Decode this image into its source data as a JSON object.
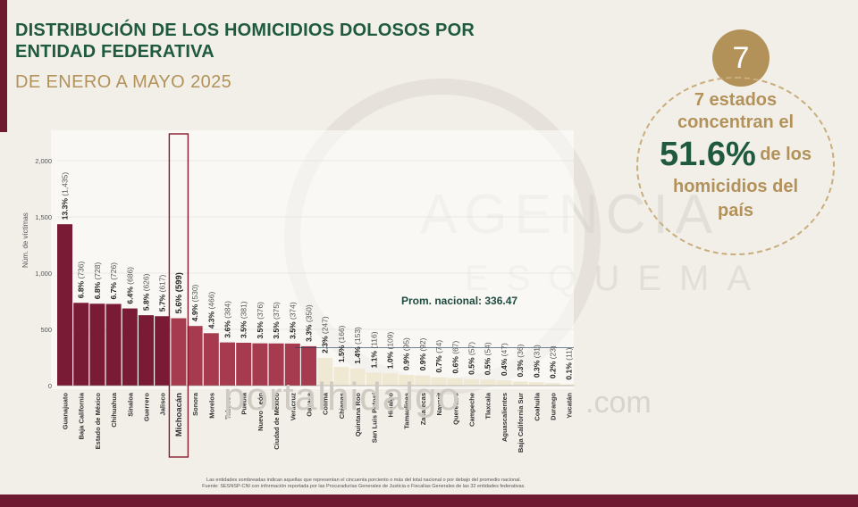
{
  "header": {
    "title": "DISTRIBUCIÓN DE LOS HOMICIDIOS DOLOSOS POR ENTIDAD FEDERATIVA",
    "subtitle": "DE ENERO A MAYO 2025"
  },
  "summary": {
    "badge": "7",
    "line1": "7 estados",
    "line2": "concentran el",
    "percent": "51.6%",
    "line3": "de los",
    "line4": "homicidios del",
    "line5": "país"
  },
  "watermark": {
    "site": "portalhidalgo",
    "domain": ".com"
  },
  "footer": {
    "note1": "Las entidades sombreadas indican aquellas que representan el cincuenta porciento o más del total nacional o por debajo del promedio nacional.",
    "note2": "Fuente: SESNSP-CNI con información reportada por las Procuradurías Generales de Justicia o Fiscalías Generales de las 32 entidades federativas."
  },
  "colors": {
    "bar_dark": "#7a1b35",
    "bar_mid": "#a63a4e",
    "bar_light": "#efe9d4",
    "green": "#1f5a3f",
    "gold": "#b3925a"
  },
  "chart_data": {
    "type": "bar",
    "ylabel": "Núm. de víctimas",
    "ylim": [
      0,
      2000
    ],
    "yticks": [
      "0",
      "500",
      "1,000",
      "1,500",
      "2,000"
    ],
    "average_label": "Prom. nacional: 336.47",
    "average": 336.47,
    "highlighted": "Michoacán",
    "categories": [
      "Guanajuato",
      "Baja California",
      "Estado de México",
      "Chihuahua",
      "Sinaloa",
      "Guerrero",
      "Jalisco",
      "Michoacán",
      "Sonora",
      "Morelos",
      "Tabasco",
      "Puebla",
      "Nuevo León",
      "Ciudad de México",
      "Veracruz",
      "Oaxaca",
      "Colima",
      "Chiapas",
      "Quintana Roo",
      "San Luis Potosí",
      "Hidalgo",
      "Tamaulipas",
      "Zacatecas",
      "Nayarit",
      "Querétaro",
      "Campeche",
      "Tlaxcala",
      "Aguascalientes",
      "Baja California Sur",
      "Coahuila",
      "Durango",
      "Yucatán"
    ],
    "values": [
      1435,
      736,
      728,
      726,
      686,
      626,
      617,
      599,
      530,
      466,
      384,
      381,
      376,
      375,
      374,
      350,
      247,
      166,
      153,
      116,
      109,
      95,
      92,
      74,
      67,
      57,
      54,
      47,
      36,
      31,
      23,
      11
    ],
    "pct": [
      "13.3%",
      "6.8%",
      "6.8%",
      "6.7%",
      "6.4%",
      "5.8%",
      "5.7%",
      "5.6%",
      "4.9%",
      "4.3%",
      "3.6%",
      "3.5%",
      "3.5%",
      "3.5%",
      "3.5%",
      "3.3%",
      "2.3%",
      "1.5%",
      "1.4%",
      "1.1%",
      "1.0%",
      "0.9%",
      "0.9%",
      "0.7%",
      "0.6%",
      "0.5%",
      "0.5%",
      "0.4%",
      "0.3%",
      "0.3%",
      "0.2%",
      "0.1%"
    ],
    "counts": [
      "(1,435)",
      "(736)",
      "(728)",
      "(726)",
      "(686)",
      "(626)",
      "(617)",
      "(599)",
      "(530)",
      "(466)",
      "(384)",
      "(381)",
      "(376)",
      "(375)",
      "(374)",
      "(350)",
      "(247)",
      "(166)",
      "(153)",
      "(116)",
      "(109)",
      "(95)",
      "(92)",
      "(74)",
      "(67)",
      "(57)",
      "(54)",
      "(47)",
      "(36)",
      "(31)",
      "(23)",
      "(11)"
    ],
    "tier": [
      "dark",
      "dark",
      "dark",
      "dark",
      "dark",
      "dark",
      "dark",
      "mid",
      "mid",
      "mid",
      "mid",
      "mid",
      "mid",
      "mid",
      "mid",
      "mid",
      "light",
      "light",
      "light",
      "light",
      "light",
      "light",
      "light",
      "light",
      "light",
      "light",
      "light",
      "light",
      "light",
      "light",
      "light",
      "light"
    ]
  }
}
